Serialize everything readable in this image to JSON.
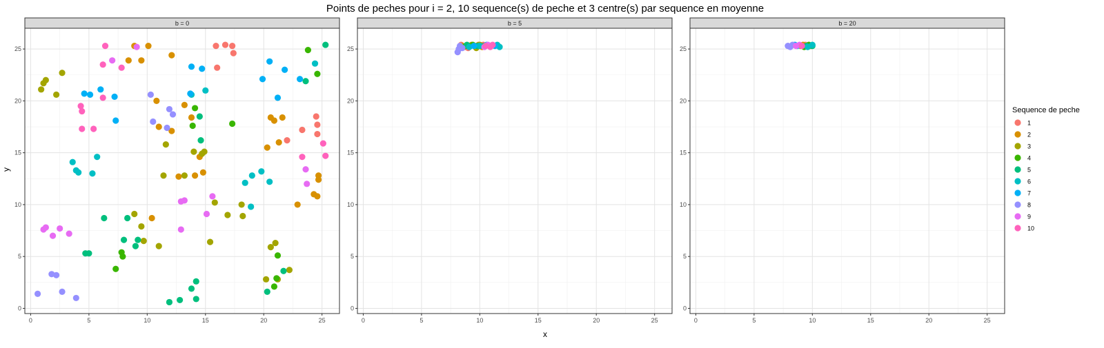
{
  "chart_data": {
    "type": "scatter",
    "title": "Points de peches pour i = 2, 10 sequence(s) de peche et 3 centre(s) par sequence en moyenne",
    "xlabel": "x",
    "ylabel": "y",
    "xlim": [
      -0.5,
      26.5
    ],
    "ylim": [
      -0.5,
      27
    ],
    "x_ticks": [
      0,
      5,
      10,
      15,
      20,
      25
    ],
    "y_ticks": [
      0,
      5,
      10,
      15,
      20,
      25
    ],
    "grid": true,
    "legend": {
      "title": "Sequence de peche",
      "placement": "right",
      "entries": [
        "1",
        "2",
        "3",
        "4",
        "5",
        "6",
        "7",
        "8",
        "9",
        "10"
      ]
    },
    "series_colors": [
      "#F8766D",
      "#D89000",
      "#A3A500",
      "#39B600",
      "#00BF7D",
      "#00BFC4",
      "#00B0F6",
      "#9590FF",
      "#E76BF3",
      "#FF62BC"
    ],
    "panels": [
      {
        "label": "b = 0",
        "series": [
          {
            "name": "1",
            "points": [
              [
                15.9,
                25.3
              ],
              [
                16.7,
                25.4
              ],
              [
                17.3,
                25.3
              ],
              [
                17.4,
                24.6
              ],
              [
                16.0,
                23.2
              ],
              [
                24.5,
                18.5
              ],
              [
                24.6,
                17.7
              ],
              [
                24.6,
                16.8
              ],
              [
                23.3,
                17.2
              ],
              [
                22.0,
                16.2
              ]
            ]
          },
          {
            "name": "2",
            "points": [
              [
                8.4,
                23.9
              ],
              [
                8.9,
                25.3
              ],
              [
                9.5,
                23.9
              ],
              [
                10.1,
                25.3
              ],
              [
                12.1,
                24.4
              ],
              [
                10.8,
                20.0
              ],
              [
                13.2,
                19.6
              ],
              [
                11.0,
                17.5
              ],
              [
                12.1,
                17.1
              ],
              [
                13.8,
                18.4
              ],
              [
                20.6,
                18.4
              ],
              [
                20.9,
                18.1
              ],
              [
                21.6,
                18.4
              ],
              [
                21.3,
                16.0
              ],
              [
                20.3,
                15.5
              ],
              [
                14.5,
                14.6
              ],
              [
                14.8,
                13.1
              ],
              [
                14.1,
                12.8
              ],
              [
                12.7,
                12.7
              ],
              [
                24.7,
                12.8
              ],
              [
                24.7,
                12.4
              ],
              [
                24.3,
                11.0
              ],
              [
                24.6,
                10.8
              ],
              [
                22.9,
                10.0
              ],
              [
                10.4,
                8.7
              ]
            ]
          },
          {
            "name": "3",
            "points": [
              [
                0.9,
                21.1
              ],
              [
                1.1,
                21.7
              ],
              [
                1.3,
                22.0
              ],
              [
                2.7,
                22.7
              ],
              [
                2.2,
                20.6
              ],
              [
                11.6,
                15.8
              ],
              [
                11.4,
                12.8
              ],
              [
                13.2,
                12.8
              ],
              [
                14.0,
                15.1
              ],
              [
                14.7,
                14.9
              ],
              [
                14.9,
                15.1
              ],
              [
                15.8,
                10.2
              ],
              [
                16.9,
                9.0
              ],
              [
                18.1,
                10.0
              ],
              [
                18.2,
                8.9
              ],
              [
                8.9,
                9.1
              ],
              [
                9.5,
                7.9
              ],
              [
                9.7,
                6.5
              ],
              [
                11.0,
                6.0
              ],
              [
                15.4,
                6.4
              ],
              [
                20.6,
                5.9
              ],
              [
                21.0,
                6.3
              ],
              [
                20.2,
                2.8
              ],
              [
                21.2,
                2.8
              ],
              [
                22.2,
                3.7
              ]
            ]
          },
          {
            "name": "4",
            "points": [
              [
                23.8,
                24.9
              ],
              [
                24.6,
                22.6
              ],
              [
                13.9,
                17.6
              ],
              [
                14.1,
                19.3
              ],
              [
                17.3,
                17.8
              ],
              [
                7.8,
                5.4
              ],
              [
                7.9,
                5.0
              ],
              [
                7.3,
                3.8
              ],
              [
                21.1,
                2.9
              ],
              [
                21.2,
                5.1
              ],
              [
                20.9,
                2.1
              ]
            ]
          },
          {
            "name": "5",
            "points": [
              [
                25.3,
                25.4
              ],
              [
                23.6,
                21.9
              ],
              [
                14.5,
                18.5
              ],
              [
                14.6,
                16.2
              ],
              [
                6.3,
                8.7
              ],
              [
                8.3,
                8.7
              ],
              [
                8.0,
                6.6
              ],
              [
                9.2,
                6.6
              ],
              [
                9.0,
                6.0
              ],
              [
                4.7,
                5.3
              ],
              [
                5.0,
                5.3
              ],
              [
                11.9,
                0.6
              ],
              [
                12.8,
                0.8
              ],
              [
                13.8,
                1.9
              ],
              [
                14.2,
                2.6
              ],
              [
                14.2,
                0.9
              ],
              [
                20.3,
                1.6
              ],
              [
                21.7,
                3.6
              ]
            ]
          },
          {
            "name": "6",
            "points": [
              [
                24.4,
                23.6
              ],
              [
                13.8,
                20.6
              ],
              [
                15.0,
                21.0
              ],
              [
                5.7,
                14.6
              ],
              [
                5.3,
                13.0
              ],
              [
                3.6,
                14.1
              ],
              [
                3.9,
                13.3
              ],
              [
                4.1,
                13.1
              ],
              [
                18.4,
                12.1
              ],
              [
                19.0,
                12.8
              ],
              [
                19.8,
                13.2
              ],
              [
                20.5,
                12.2
              ],
              [
                18.9,
                9.8
              ]
            ]
          },
          {
            "name": "7",
            "points": [
              [
                13.8,
                23.3
              ],
              [
                14.7,
                23.1
              ],
              [
                20.5,
                23.8
              ],
              [
                21.8,
                23.0
              ],
              [
                19.9,
                22.1
              ],
              [
                23.1,
                22.1
              ],
              [
                4.6,
                20.7
              ],
              [
                5.1,
                20.6
              ],
              [
                6.0,
                21.1
              ],
              [
                7.2,
                20.4
              ],
              [
                13.7,
                20.7
              ],
              [
                21.2,
                20.3
              ],
              [
                7.3,
                18.1
              ]
            ]
          },
          {
            "name": "8",
            "points": [
              [
                10.3,
                20.6
              ],
              [
                11.9,
                19.2
              ],
              [
                12.2,
                18.7
              ],
              [
                10.5,
                18.0
              ],
              [
                11.7,
                17.4
              ],
              [
                0.6,
                1.4
              ],
              [
                1.8,
                3.3
              ],
              [
                2.2,
                3.2
              ],
              [
                2.7,
                1.6
              ],
              [
                3.9,
                1.0
              ]
            ]
          },
          {
            "name": "9",
            "points": [
              [
                7.0,
                23.9
              ],
              [
                9.1,
                25.2
              ],
              [
                12.9,
                10.3
              ],
              [
                13.2,
                10.4
              ],
              [
                15.1,
                9.1
              ],
              [
                15.6,
                10.8
              ],
              [
                23.6,
                13.4
              ],
              [
                23.7,
                12.0
              ],
              [
                1.1,
                7.6
              ],
              [
                1.3,
                7.8
              ],
              [
                2.5,
                7.7
              ],
              [
                1.9,
                7.0
              ],
              [
                3.3,
                7.2
              ],
              [
                12.9,
                7.6
              ]
            ]
          },
          {
            "name": "10",
            "points": [
              [
                6.4,
                25.3
              ],
              [
                6.2,
                23.5
              ],
              [
                7.8,
                23.2
              ],
              [
                4.3,
                19.5
              ],
              [
                4.4,
                19.0
              ],
              [
                6.2,
                20.3
              ],
              [
                4.4,
                17.3
              ],
              [
                5.4,
                17.3
              ],
              [
                25.1,
                15.9
              ],
              [
                25.3,
                14.7
              ],
              [
                23.3,
                14.6
              ]
            ]
          }
        ]
      },
      {
        "label": "b = 5",
        "series": [
          {
            "name": "1",
            "points": [
              [
                8.4,
                25.4
              ],
              [
                8.7,
                25.2
              ],
              [
                9.0,
                25.1
              ],
              [
                9.6,
                25.3
              ],
              [
                10.3,
                25.4
              ]
            ]
          },
          {
            "name": "2",
            "points": [
              [
                8.5,
                25.3
              ],
              [
                9.3,
                25.4
              ],
              [
                9.9,
                25.4
              ],
              [
                10.2,
                25.2
              ]
            ]
          },
          {
            "name": "3",
            "points": [
              [
                8.6,
                25.2
              ],
              [
                9.2,
                25.3
              ],
              [
                9.7,
                25.1
              ],
              [
                10.0,
                25.4
              ]
            ]
          },
          {
            "name": "4",
            "points": [
              [
                8.4,
                25.2
              ],
              [
                8.8,
                25.3
              ],
              [
                9.4,
                25.4
              ]
            ]
          },
          {
            "name": "5",
            "points": [
              [
                8.9,
                25.4
              ],
              [
                9.8,
                25.3
              ],
              [
                10.4,
                25.3
              ]
            ]
          },
          {
            "name": "6",
            "points": [
              [
                9.1,
                25.2
              ],
              [
                10.0,
                25.3
              ],
              [
                11.5,
                25.4
              ],
              [
                11.7,
                25.2
              ]
            ]
          },
          {
            "name": "7",
            "points": [
              [
                9.5,
                25.3
              ],
              [
                10.6,
                25.4
              ],
              [
                11.3,
                25.3
              ]
            ]
          },
          {
            "name": "8",
            "points": [
              [
                8.1,
                24.7
              ],
              [
                8.2,
                25.0
              ],
              [
                8.3,
                25.3
              ],
              [
                8.5,
                25.1
              ]
            ]
          },
          {
            "name": "9",
            "points": [
              [
                10.4,
                25.2
              ],
              [
                10.7,
                25.4
              ],
              [
                11.0,
                25.3
              ]
            ]
          },
          {
            "name": "10",
            "points": [
              [
                10.9,
                25.2
              ],
              [
                11.1,
                25.4
              ],
              [
                10.5,
                25.3
              ]
            ]
          }
        ]
      },
      {
        "label": "b = 20",
        "series": [
          {
            "name": "1",
            "points": [
              [
                9.4,
                25.4
              ],
              [
                9.6,
                25.3
              ]
            ]
          },
          {
            "name": "2",
            "points": [
              [
                9.2,
                25.4
              ],
              [
                9.8,
                25.3
              ]
            ]
          },
          {
            "name": "3",
            "points": [
              [
                9.0,
                25.3
              ],
              [
                9.9,
                25.3
              ]
            ]
          },
          {
            "name": "4",
            "points": [
              [
                9.3,
                25.2
              ],
              [
                9.7,
                25.4
              ]
            ]
          },
          {
            "name": "5",
            "points": [
              [
                9.5,
                25.3
              ],
              [
                10.0,
                25.3
              ]
            ]
          },
          {
            "name": "6",
            "points": [
              [
                9.6,
                25.2
              ],
              [
                10.0,
                25.4
              ]
            ]
          },
          {
            "name": "7",
            "points": [
              [
                8.7,
                25.3
              ],
              [
                8.5,
                25.4
              ]
            ]
          },
          {
            "name": "8",
            "points": [
              [
                7.9,
                25.3
              ],
              [
                8.1,
                25.2
              ],
              [
                8.3,
                25.4
              ]
            ]
          },
          {
            "name": "9",
            "points": [
              [
                8.6,
                25.3
              ],
              [
                8.9,
                25.4
              ]
            ]
          },
          {
            "name": "10",
            "points": [
              [
                9.1,
                25.3
              ]
            ]
          }
        ]
      }
    ]
  }
}
